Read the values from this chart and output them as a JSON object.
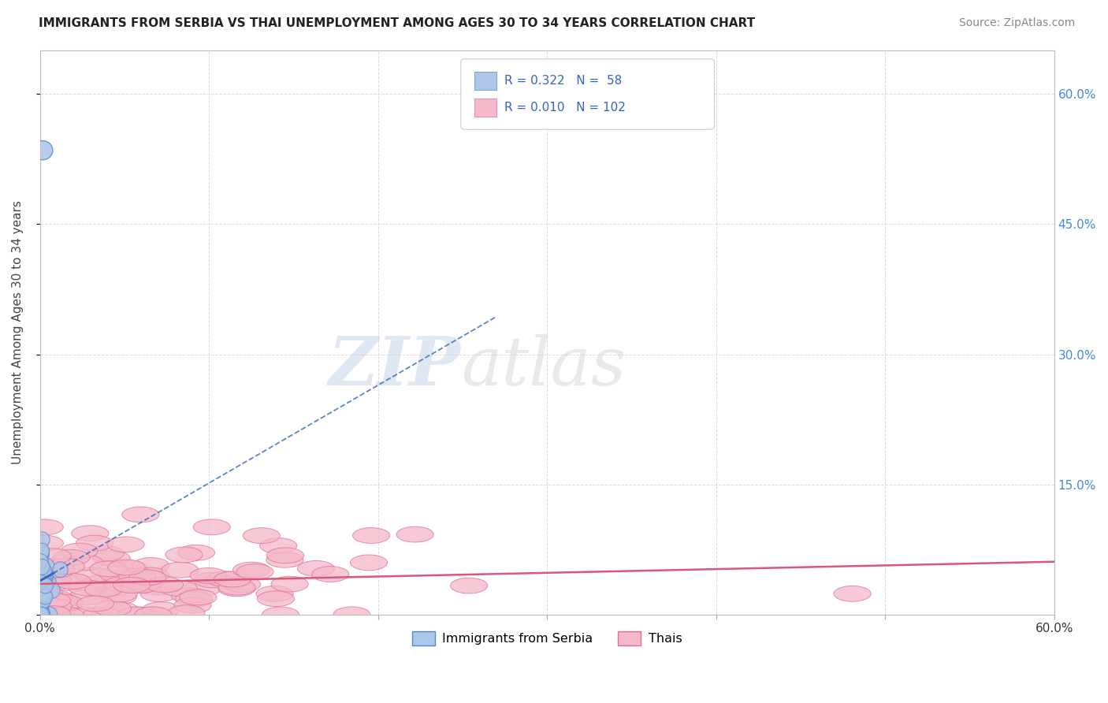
{
  "title": "IMMIGRANTS FROM SERBIA VS THAI UNEMPLOYMENT AMONG AGES 30 TO 34 YEARS CORRELATION CHART",
  "source": "Source: ZipAtlas.com",
  "ylabel": "Unemployment Among Ages 30 to 34 years",
  "xlim": [
    0.0,
    0.6
  ],
  "ylim": [
    0.0,
    0.65
  ],
  "serbia_R": 0.322,
  "serbia_N": 58,
  "thai_R": 0.01,
  "thai_N": 102,
  "serbia_color": "#aec6e8",
  "serbia_edge_color": "#5588cc",
  "thai_color": "#f4b8c8",
  "thai_edge_color": "#e07090",
  "trend_serbia_color": "#3366bb",
  "trend_thai_color": "#dd5577",
  "watermark_zip": "ZIP",
  "watermark_atlas": "atlas",
  "background_color": "#ffffff",
  "grid_color": "#cccccc",
  "right_tick_color": "#4488dd"
}
